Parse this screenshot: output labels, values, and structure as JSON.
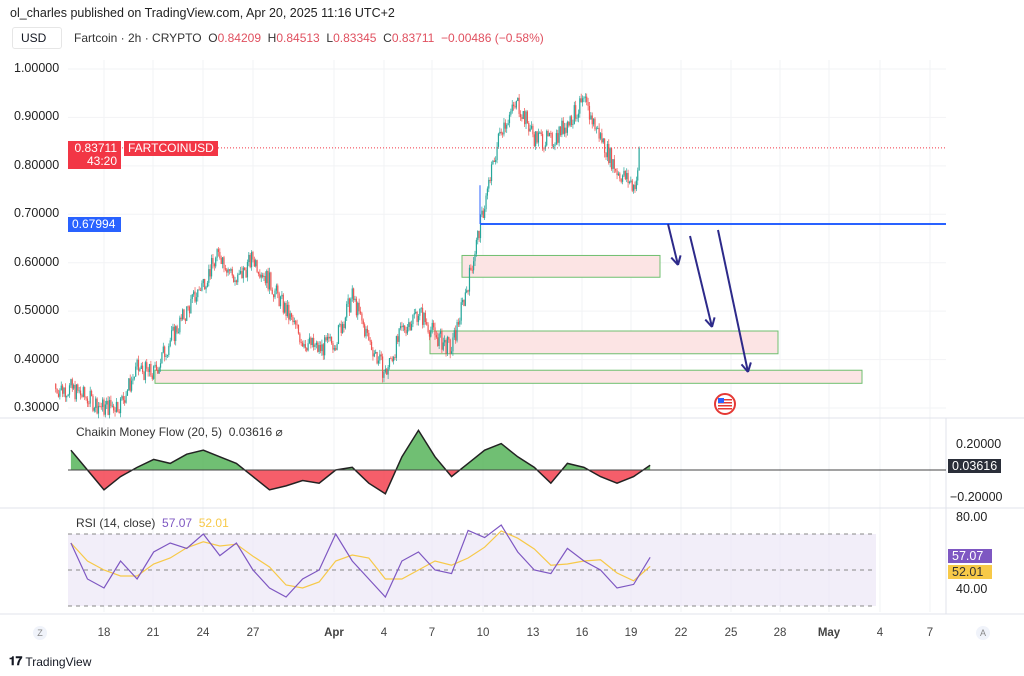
{
  "header": {
    "published": "ol_charles published on TradingView.com, Apr 20, 2025 11:16 UTC+2",
    "currency": "USD",
    "symbol": "Fartcoin · 2h · CRYPTO",
    "o_label": "O",
    "o": "0.84209",
    "h_label": "H",
    "h": "0.84513",
    "l_label": "L",
    "l": "0.83345",
    "c_label": "C",
    "c": "0.83711",
    "change": "−0.00486 (−0.58%)"
  },
  "price_badge": {
    "price": "0.83711",
    "countdown": "43:20",
    "ticker": "FARTCOINUSD",
    "color": "#f23645"
  },
  "level_badge": {
    "price": "0.67994",
    "color": "#2962ff"
  },
  "footer": {
    "logo": "TradingView",
    "left_btn": "Z",
    "right_btn": "A"
  },
  "chart_data": [
    {
      "type": "candlestick",
      "ylim": [
        0.28,
        1.03
      ],
      "yticks": [
        "1.00000",
        "0.90000",
        "0.80000",
        "0.70000",
        "0.60000",
        "0.50000",
        "0.40000",
        "0.30000"
      ],
      "xticks": [
        "18",
        "21",
        "24",
        "27",
        "Apr",
        "4",
        "7",
        "10",
        "13",
        "16",
        "19",
        "22",
        "25",
        "28",
        "May",
        "4",
        "7"
      ],
      "x": [
        "Mar 16",
        "Mar 17",
        "Mar 18",
        "Mar 19",
        "Mar 20",
        "Mar 21",
        "Mar 22",
        "Mar 23",
        "Mar 24",
        "Mar 25",
        "Mar 26",
        "Mar 27",
        "Mar 28",
        "Mar 29",
        "Mar 30",
        "Mar 31",
        "Apr 1",
        "Apr 2",
        "Apr 3",
        "Apr 4",
        "Apr 5",
        "Apr 6",
        "Apr 7",
        "Apr 8",
        "Apr 9",
        "Apr 10",
        "Apr 11",
        "Apr 12",
        "Apr 13",
        "Apr 14",
        "Apr 15",
        "Apr 16",
        "Apr 17",
        "Apr 18",
        "Apr 19",
        "Apr 20"
      ],
      "close": [
        0.34,
        0.32,
        0.3,
        0.31,
        0.38,
        0.37,
        0.44,
        0.5,
        0.56,
        0.62,
        0.56,
        0.61,
        0.56,
        0.5,
        0.44,
        0.42,
        0.44,
        0.53,
        0.44,
        0.37,
        0.46,
        0.5,
        0.45,
        0.42,
        0.56,
        0.72,
        0.88,
        0.93,
        0.86,
        0.85,
        0.89,
        0.93,
        0.86,
        0.79,
        0.76,
        0.837
      ],
      "levels": [
        {
          "price": 0.67994,
          "color": "#2962ff"
        }
      ],
      "zones": [
        [
          0.57,
          0.615
        ],
        [
          0.412,
          0.459
        ],
        [
          0.351,
          0.378
        ]
      ],
      "colors": {
        "up": "#26a69a",
        "down": "#ef5350"
      }
    },
    {
      "type": "area",
      "title": "Chaikin Money Flow (20, 5)",
      "value": "0.03616",
      "ylim": [
        -0.3,
        0.3
      ],
      "yticks": [
        "0.20000",
        "−0.20000"
      ],
      "last": "0.03616",
      "values": [
        0.15,
        0.0,
        -0.15,
        -0.05,
        0.02,
        0.08,
        0.05,
        0.12,
        0.15,
        0.1,
        0.05,
        -0.05,
        -0.15,
        -0.12,
        -0.08,
        -0.1,
        0.0,
        0.02,
        -0.1,
        -0.18,
        0.1,
        0.3,
        0.1,
        -0.05,
        0.05,
        0.15,
        0.2,
        0.1,
        0.02,
        -0.1,
        0.05,
        0.02,
        -0.05,
        -0.1,
        -0.05,
        0.036
      ],
      "colors": {
        "pos": "#4caf50",
        "neg": "#f23645"
      }
    },
    {
      "type": "line",
      "title": "RSI (14, close)",
      "rsi_value": "57.07",
      "ma_value": "52.01",
      "ylim": [
        20,
        85
      ],
      "yticks": [
        "80.00",
        "40.00"
      ],
      "bands": [
        70,
        50,
        30
      ],
      "rsi": [
        65,
        45,
        40,
        55,
        45,
        60,
        65,
        62,
        70,
        58,
        65,
        50,
        40,
        35,
        45,
        50,
        70,
        55,
        45,
        35,
        55,
        60,
        50,
        48,
        72,
        68,
        75,
        60,
        50,
        48,
        62,
        55,
        50,
        40,
        42,
        57.07
      ],
      "colors": {
        "rsi": "#7e57c2",
        "ma": "#f7c948"
      }
    }
  ]
}
